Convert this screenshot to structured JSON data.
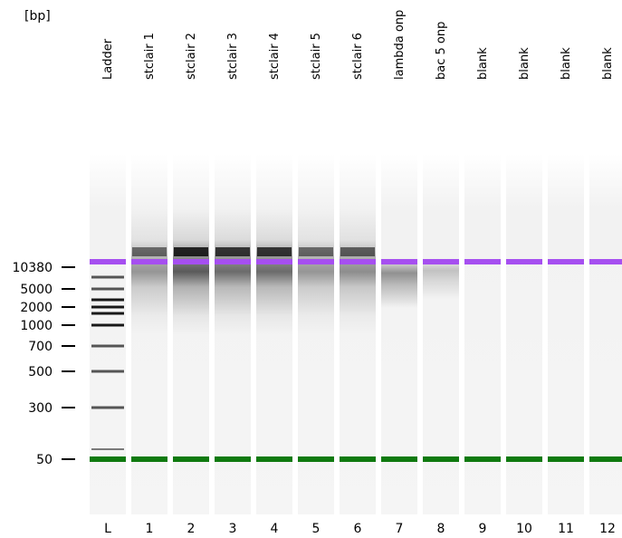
{
  "unit_label": "[bp]",
  "lanes": [
    {
      "id": "L",
      "name": "Ladder",
      "smear": "ladder"
    },
    {
      "id": "1",
      "name": "stclair 1",
      "smear": "hmw",
      "darkness": 0.55
    },
    {
      "id": "2",
      "name": "stclair 2",
      "smear": "hmw",
      "darkness": 0.9
    },
    {
      "id": "3",
      "name": "stclair 3",
      "smear": "hmw",
      "darkness": 0.8
    },
    {
      "id": "4",
      "name": "stclair 4",
      "smear": "hmw",
      "darkness": 0.8
    },
    {
      "id": "5",
      "name": "stclair 5",
      "smear": "hmw",
      "darkness": 0.55
    },
    {
      "id": "6",
      "name": "stclair 6",
      "smear": "hmw",
      "darkness": 0.6
    },
    {
      "id": "7",
      "name": "lambda onp",
      "smear": "lambda",
      "darkness": 0.6
    },
    {
      "id": "8",
      "name": "bac 5 onp",
      "smear": "bac",
      "darkness": 0.25
    },
    {
      "id": "9",
      "name": "blank",
      "smear": "none"
    },
    {
      "id": "10",
      "name": "blank",
      "smear": "none"
    },
    {
      "id": "11",
      "name": "blank",
      "smear": "none"
    },
    {
      "id": "12",
      "name": "blank",
      "smear": "none"
    }
  ],
  "size_markers": [
    "10380",
    "5000",
    "2000",
    "1000",
    "700",
    "500",
    "300",
    "50"
  ],
  "ladder_bands": [
    "10380",
    "7000",
    "5000",
    "3000",
    "2000",
    "1500",
    "1000",
    "700",
    "500",
    "300",
    "50"
  ],
  "colors": {
    "upper_marker": "#a64ff0",
    "lower_marker": "#0f7a0f",
    "band": "#000000",
    "lane_background": "#f7f7f7"
  }
}
